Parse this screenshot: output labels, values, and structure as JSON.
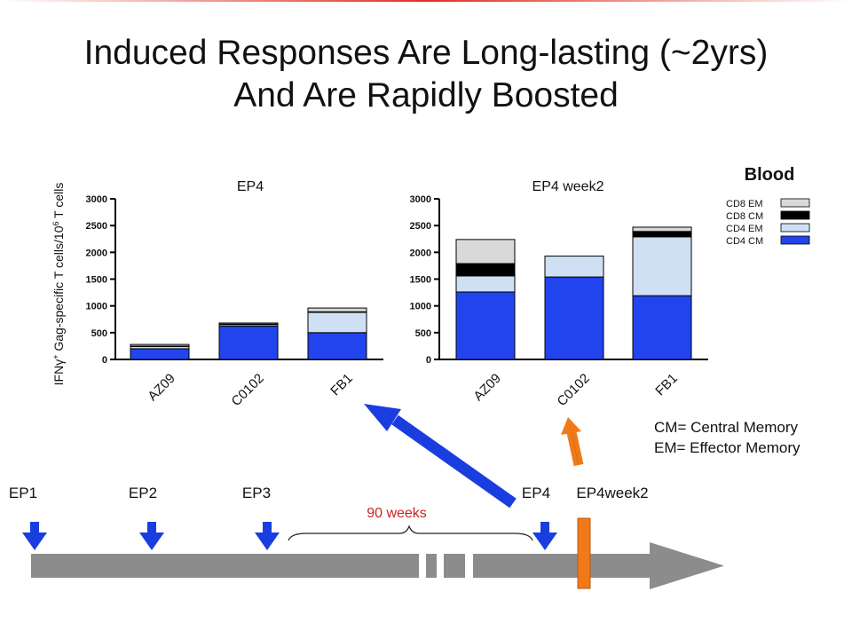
{
  "slide": {
    "title_line1": "Induced Responses Are Long-lasting (~2yrs)",
    "title_line2": "And Are Rapidly Boosted"
  },
  "ylabel_parts": [
    "IFN",
    "γ",
    "+",
    " Gag-specific T cells/10",
    "6",
    " T cells"
  ],
  "legend": {
    "title": "Blood",
    "entries": [
      "CD8 EM",
      "CD8 CM",
      "CD4 EM",
      "CD4 CM"
    ]
  },
  "colors": {
    "CD8 EM": "#d9d9d9",
    "CD8 CM": "#000000",
    "CD4 EM": "#cfe0f5",
    "CD4 CM": "#2244ee",
    "arrow_blue": "#1a3de0",
    "arrow_orange": "#f07a1a",
    "timeline_gray": "#8c8c8c",
    "weeks_red": "#cc2222"
  },
  "notes": [
    "CM= Central Memory",
    "EM= Effector Memory"
  ],
  "timeline": {
    "labels": [
      "EP1",
      "EP2",
      "EP3",
      "EP4",
      "EP4week2"
    ],
    "gap_label": "90 weeks"
  },
  "chart_data": [
    {
      "type": "bar",
      "stacked": true,
      "title": "EP4",
      "ylabel": "IFNγ+ Gag-specific T cells/10^6 T cells",
      "categories": [
        "AZ09",
        "C0102",
        "FB1"
      ],
      "ylim": [
        0,
        3000
      ],
      "yticks": [
        0,
        500,
        1000,
        1500,
        2000,
        2500,
        3000
      ],
      "series": [
        {
          "name": "CD4 CM",
          "values": [
            200,
            620,
            500
          ]
        },
        {
          "name": "CD4 EM",
          "values": [
            40,
            30,
            380
          ]
        },
        {
          "name": "CD8 CM",
          "values": [
            10,
            10,
            10
          ]
        },
        {
          "name": "CD8 EM",
          "values": [
            30,
            20,
            70
          ]
        }
      ]
    },
    {
      "type": "bar",
      "stacked": true,
      "title": "EP4 week2",
      "categories": [
        "AZ09",
        "C0102",
        "FB1"
      ],
      "ylim": [
        0,
        3000
      ],
      "yticks": [
        0,
        500,
        1000,
        1500,
        2000,
        2500,
        3000
      ],
      "series": [
        {
          "name": "CD4 CM",
          "values": [
            1260,
            1540,
            1190
          ]
        },
        {
          "name": "CD4 EM",
          "values": [
            300,
            390,
            1100
          ]
        },
        {
          "name": "CD8 CM",
          "values": [
            230,
            0,
            100
          ]
        },
        {
          "name": "CD8 EM",
          "values": [
            450,
            0,
            80
          ]
        }
      ]
    }
  ]
}
